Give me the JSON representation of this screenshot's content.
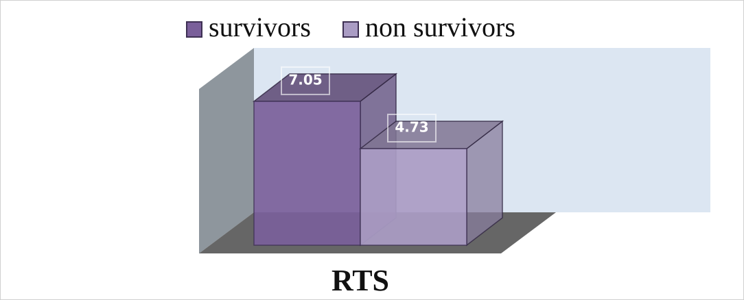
{
  "chart_data": {
    "type": "bar",
    "categories": [
      "RTS"
    ],
    "series": [
      {
        "name": "survivors",
        "color": "#7a5f9a",
        "values": [
          7.05
        ]
      },
      {
        "name": "non survivors",
        "color": "#aa9cc4",
        "values": [
          4.73
        ]
      }
    ]
  }
}
